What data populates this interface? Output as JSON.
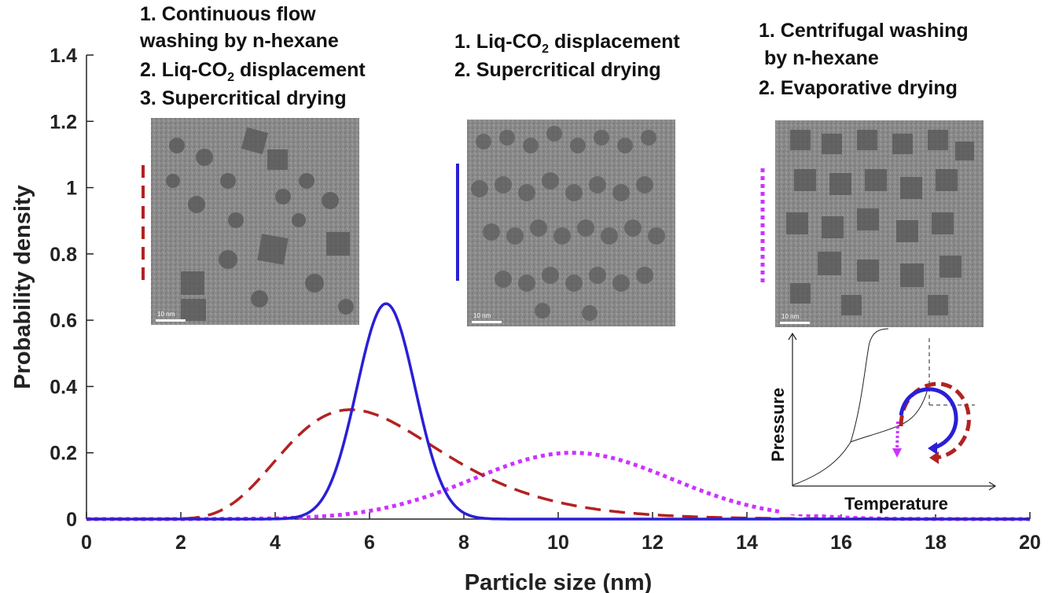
{
  "chart_data": {
    "type": "line",
    "title": "",
    "xlabel": "Particle size (nm)",
    "ylabel": "Probability density",
    "xlim": [
      0,
      20
    ],
    "ylim": [
      0,
      1.4
    ],
    "xticks": [
      0,
      2,
      4,
      6,
      8,
      10,
      12,
      14,
      16,
      18,
      20
    ],
    "yticks": [
      0,
      0.2,
      0.4,
      0.6,
      0.8,
      1,
      1.2,
      1.4
    ],
    "xtick_labels": [
      "0",
      "2",
      "4",
      "6",
      "8",
      "10",
      "12",
      "14",
      "16",
      "18",
      "20"
    ],
    "ytick_labels": [
      "0",
      "0.2",
      "0.4",
      "0.6",
      "0.8",
      "1",
      "1.2",
      "1.4"
    ],
    "grid": false,
    "series": [
      {
        "color": "#b22222",
        "style": "dashed",
        "distribution": "lognormal",
        "mode": 5.6,
        "peak": 0.33,
        "x": [
          0,
          3,
          4,
          5,
          5.6,
          6,
          7,
          8,
          9,
          10,
          12,
          20
        ],
        "y": [
          0,
          0.01,
          0.12,
          0.29,
          0.33,
          0.31,
          0.22,
          0.12,
          0.06,
          0.02,
          0.005,
          0
        ]
      },
      {
        "color": "#2a1fd6",
        "style": "solid",
        "distribution": "normal",
        "mean": 6.35,
        "sd": 0.62,
        "peak": 0.65,
        "x": [
          0,
          4.5,
          5,
          5.5,
          6,
          6.35,
          7,
          7.5,
          8,
          8.5,
          20
        ],
        "y": [
          0,
          0.01,
          0.06,
          0.25,
          0.55,
          0.65,
          0.37,
          0.12,
          0.02,
          0,
          0
        ]
      },
      {
        "color": "#cc33ff",
        "style": "dotted",
        "distribution": "normal",
        "mean": 10.3,
        "sd": 2.1,
        "peak": 0.2,
        "x": [
          0,
          4,
          6,
          8,
          10.3,
          12,
          14,
          16,
          20
        ],
        "y": [
          0,
          0.0,
          0.03,
          0.11,
          0.2,
          0.15,
          0.04,
          0.005,
          0
        ]
      }
    ],
    "annotations": [
      {
        "lines": [
          "1. Continuous flow",
          "washing by n-hexane",
          "2. Liq-CO",
          "3. Supercritical drying"
        ],
        "line3_sub": "2",
        "line3_rest": " displacement",
        "legend_color": "#b22222",
        "legend_style": "dashed"
      },
      {
        "lines": [
          "1. Liq-CO",
          "2. Supercritical drying"
        ],
        "line1_sub": "2",
        "line1_rest": " displacement",
        "legend_color": "#2a1fd6",
        "legend_style": "solid"
      },
      {
        "lines": [
          "1. Centrifugal washing",
          " by n-hexane",
          "2. Evaporative drying"
        ],
        "legend_color": "#cc33ff",
        "legend_style": "dotted"
      }
    ],
    "tem_scale_label": "10 nm",
    "inset": {
      "xlabel": "Temperature",
      "ylabel": "Pressure"
    }
  }
}
